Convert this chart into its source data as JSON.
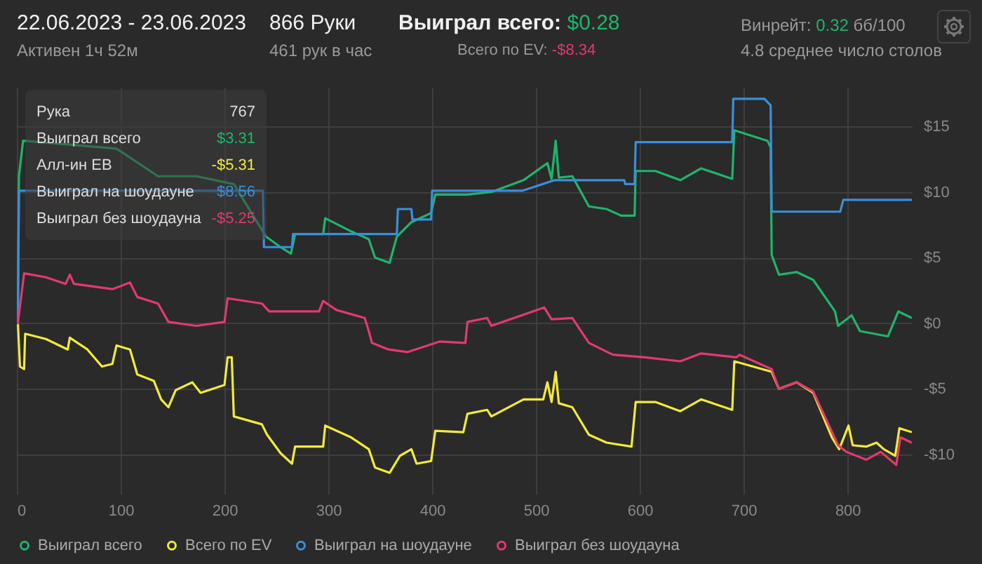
{
  "chart_data": {
    "type": "line",
    "title": "22.06.2023 - 23.06.2023",
    "subtitle": "Активен 1ч 52м",
    "annotations": [
      "866 Руки",
      "461 рук в час",
      "Выиграл всего:",
      "$0.28",
      "Всего по EV:",
      "-$8.34",
      "Винрейт:",
      "0.32",
      "бб/100",
      "4.8 среднее число столов",
      "Рука",
      "767",
      "Выиграл всего",
      "$3.31",
      "Алл-ин ЕВ",
      "-$5.31",
      "Выиграл на шоудауне",
      "$8.56",
      "Выиграл без шоудауна",
      "-$5.25"
    ],
    "series": [
      {
        "name": "Выиграл всего",
        "color": "#1fb56a",
        "x": [
          0,
          1,
          2,
          6,
          96,
          136,
          173,
          209,
          240,
          254,
          264,
          268,
          295,
          297,
          322,
          339,
          345,
          359,
          366,
          380,
          399,
          403,
          434,
          457,
          488,
          511,
          515,
          519,
          522,
          535,
          551,
          568,
          582,
          595,
          596,
          615,
          639,
          659,
          689,
          691,
          723,
          726,
          727,
          734,
          751,
          767,
          788,
          791,
          804,
          812,
          839,
          849,
          862
        ],
        "values": [
          0,
          0,
          11.2,
          13.9,
          13.3,
          11.2,
          11.2,
          10.6,
          6.6,
          5.8,
          5.3,
          6.8,
          6.8,
          8.0,
          7.0,
          6.4,
          5.0,
          4.6,
          6.6,
          7.7,
          8.4,
          9.8,
          9.8,
          10.0,
          10.9,
          12.2,
          11.0,
          13.9,
          11.1,
          11.2,
          8.9,
          8.7,
          8.2,
          8.2,
          11.6,
          11.6,
          10.9,
          11.8,
          11.0,
          14.7,
          13.9,
          13.4,
          5.2,
          3.7,
          3.9,
          3.3,
          0.9,
          -0.2,
          0.6,
          -0.6,
          -1.0,
          0.9,
          0.4
        ]
      },
      {
        "name": "Всего по EV",
        "color": "#f2ea3c",
        "x": [
          0,
          1,
          3,
          7,
          8,
          28,
          49,
          51,
          68,
          82,
          92,
          96,
          109,
          116,
          132,
          139,
          146,
          153,
          169,
          177,
          200,
          203,
          207,
          209,
          236,
          241,
          254,
          265,
          268,
          295,
          297,
          322,
          339,
          345,
          359,
          369,
          380,
          385,
          399,
          403,
          430,
          434,
          453,
          457,
          488,
          507,
          511,
          515,
          519,
          522,
          535,
          551,
          568,
          592,
          596,
          615,
          639,
          659,
          689,
          691,
          709,
          727,
          734,
          751,
          767,
          785,
          792,
          801,
          805,
          818,
          828,
          835,
          846,
          850,
          862
        ],
        "values": [
          0,
          0,
          -3.3,
          -3.5,
          -0.8,
          -1.2,
          -2.0,
          -1.1,
          -2.0,
          -3.3,
          -3.1,
          -1.7,
          -2.0,
          -3.9,
          -4.4,
          -5.8,
          -6.4,
          -5.1,
          -4.5,
          -5.3,
          -4.7,
          -2.6,
          -2.6,
          -7.1,
          -7.7,
          -8.5,
          -9.9,
          -10.7,
          -9.4,
          -9.4,
          -7.8,
          -8.7,
          -9.6,
          -11.0,
          -11.4,
          -10.1,
          -9.6,
          -10.7,
          -10.5,
          -8.2,
          -8.3,
          -6.9,
          -6.6,
          -7.1,
          -5.8,
          -5.8,
          -4.5,
          -6.0,
          -3.7,
          -6.1,
          -6.4,
          -8.5,
          -9.1,
          -9.4,
          -6.0,
          -6.0,
          -6.7,
          -5.8,
          -6.6,
          -2.9,
          -3.3,
          -3.7,
          -5.0,
          -4.5,
          -5.3,
          -8.7,
          -9.6,
          -7.8,
          -9.3,
          -9.4,
          -9.1,
          -9.6,
          -10.1,
          -8.0,
          -8.3
        ]
      },
      {
        "name": "Выиграл на шоудауне",
        "color": "#3a8fdc",
        "x": [
          0,
          1,
          2,
          237,
          238,
          265,
          266,
          366,
          367,
          380,
          381,
          399,
          400,
          487,
          518,
          585,
          586,
          595,
          596,
          689,
          690,
          720,
          726,
          727,
          793,
          796,
          862
        ],
        "values": [
          0,
          0,
          10.1,
          10.1,
          5.8,
          5.8,
          6.8,
          6.8,
          8.7,
          8.7,
          7.9,
          7.9,
          10.1,
          10.1,
          10.9,
          10.9,
          10.6,
          10.6,
          13.8,
          13.8,
          17.1,
          17.1,
          16.6,
          8.5,
          8.5,
          9.4,
          9.4
        ]
      },
      {
        "name": "Выиграл без шоудауна",
        "color": "#e13a6f",
        "x": [
          0,
          1,
          7,
          28,
          47,
          51,
          55,
          92,
          109,
          116,
          136,
          146,
          173,
          200,
          203,
          236,
          243,
          291,
          295,
          308,
          335,
          339,
          342,
          358,
          376,
          407,
          432,
          434,
          453,
          457,
          508,
          515,
          535,
          551,
          574,
          605,
          639,
          659,
          693,
          696,
          727,
          734,
          751,
          767,
          791,
          799,
          818,
          832,
          847,
          851,
          862
        ],
        "values": [
          0,
          0,
          3.8,
          3.5,
          3.0,
          3.7,
          3.0,
          2.6,
          3.1,
          2.0,
          1.5,
          0.1,
          -0.2,
          0.1,
          1.9,
          1.5,
          0.9,
          0.9,
          1.7,
          1.0,
          0.4,
          -0.6,
          -1.5,
          -2.0,
          -2.2,
          -1.4,
          -1.5,
          0.1,
          0.4,
          -0.2,
          1.2,
          0.3,
          0.4,
          -1.5,
          -2.4,
          -2.6,
          -2.9,
          -2.3,
          -2.6,
          -2.4,
          -3.5,
          -5.0,
          -4.5,
          -5.2,
          -9.3,
          -9.8,
          -10.4,
          -9.8,
          -10.8,
          -8.7,
          -9.1
        ]
      }
    ],
    "xlim": [
      0,
      862
    ],
    "xticks": [
      0,
      100,
      200,
      300,
      400,
      500,
      600,
      700,
      800
    ],
    "ylim": [
      -13,
      18
    ],
    "yticks": [
      {
        "value": -10,
        "label": "-$10"
      },
      {
        "value": -5,
        "label": "-$5"
      },
      {
        "value": 0,
        "label": "$0"
      },
      {
        "value": 5,
        "label": "$5"
      },
      {
        "value": 10,
        "label": "$10"
      },
      {
        "value": 15,
        "label": "$15"
      }
    ],
    "grid": true,
    "legend": "bottom",
    "line_style": "solid"
  }
}
